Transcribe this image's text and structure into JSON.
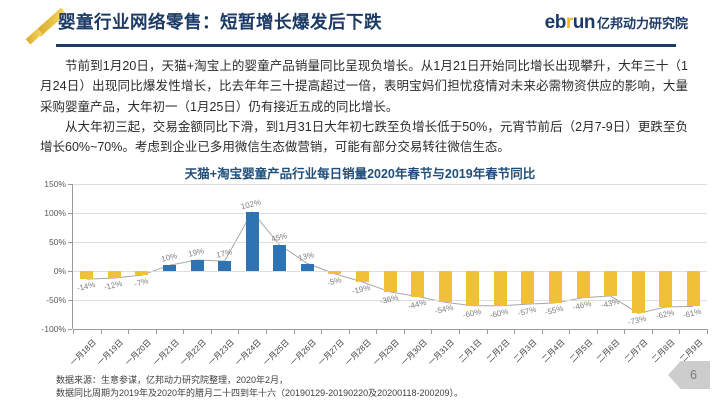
{
  "header": {
    "title": "婴童行业网络零售：短暂增长爆发后下跌",
    "brand_eb": "eb",
    "brand_r": "r",
    "brand_un": "un",
    "brand_cn": "亿邦动力研究院"
  },
  "body": {
    "paragraph1": "节前到1月20日，天猫+淘宝上的婴童产品销量同比呈现负增长。从1月21日开始同比增长出现攀升，大年三十（1月24日）出现同比爆发性增长，比去年年三十提高超过一倍，表明宝妈们担忧疫情对未来必需物资供应的影响，大量采购婴童产品，大年初一（1月25日）仍有接近五成的同比增长。",
    "paragraph2": "从大年初三起，交易金额同比下滑，到1月31日大年初七跌至负增长低于50%，元宵节前后（2月7-9日）更跌至负增长60%~70%。考虑到企业已多用微信生态做营销，可能有部分交易转往微信生态。"
  },
  "chart_data": {
    "type": "bar",
    "title": "天猫+淘宝婴童产品行业每日销量2020年春节与2019年春节同比",
    "categories": [
      "一月18日",
      "一月19日",
      "一月20日",
      "一月21日",
      "一月22日",
      "一月23日",
      "一月24日",
      "一月25日",
      "一月26日",
      "一月27日",
      "一月28日",
      "一月29日",
      "一月30日",
      "一月31日",
      "二月1日",
      "二月2日",
      "二月3日",
      "二月4日",
      "二月5日",
      "二月6日",
      "二月7日",
      "二月8日",
      "二月9日"
    ],
    "values": [
      -14,
      -12,
      -7,
      10,
      19,
      17,
      102,
      45,
      13,
      -5,
      -19,
      -36,
      -44,
      -54,
      -60,
      -60,
      -57,
      -55,
      -46,
      -43,
      -73,
      -62,
      -61
    ],
    "unit": "%",
    "ylim": [
      -100,
      150
    ],
    "yticks": [
      "150%",
      "100%",
      "50%",
      "0%",
      "-50%",
      "-100%"
    ],
    "grid": true,
    "legend": "none",
    "positive_color": "#2e74b5",
    "negative_color": "#f0c136",
    "line_color": "#a8a8a8",
    "label_color": "#7f7f7f"
  },
  "footer": {
    "source_line1": "数据来源：生意参谋，亿邦动力研究院整理，2020年2月，",
    "source_line2": "数据同比周期为2019年及2020年的腊月二十四到年十六（20190129-20190220及20200118-200209）。",
    "page_number": "6"
  }
}
